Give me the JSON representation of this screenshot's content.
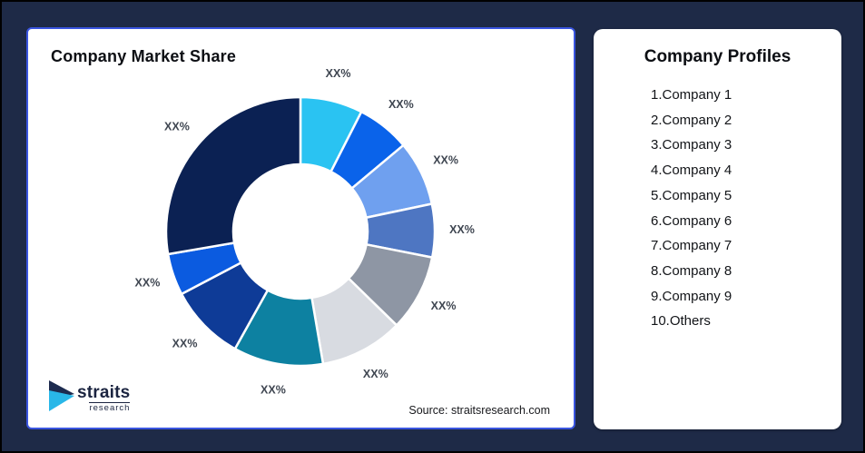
{
  "frame": {
    "background": "#1E2A47",
    "border": "#000000"
  },
  "chart_card": {
    "title": "Company Market Share",
    "source": "Source: straitsresearch.com",
    "border_color": "#3A55E0"
  },
  "chart_data": {
    "type": "pie",
    "subtype": "donut",
    "title": "Company Market Share",
    "start_angle_deg": 0,
    "direction": "clockwise",
    "label_color": "#3F4651",
    "segments": [
      {
        "label": "XX%",
        "value_pct": 7.5,
        "color": "#2AC3F2"
      },
      {
        "label": "XX%",
        "value_pct": 6.4,
        "color": "#0A63EA"
      },
      {
        "label": "XX%",
        "value_pct": 7.8,
        "color": "#6FA0EF"
      },
      {
        "label": "XX%",
        "value_pct": 6.4,
        "color": "#4E76C2"
      },
      {
        "label": "XX%",
        "value_pct": 9.2,
        "color": "#8E96A4"
      },
      {
        "label": "XX%",
        "value_pct": 10.0,
        "color": "#D8DBE1"
      },
      {
        "label": "XX%",
        "value_pct": 10.8,
        "color": "#0D81A1"
      },
      {
        "label": "XX%",
        "value_pct": 9.2,
        "color": "#0E3B97"
      },
      {
        "label": "XX%",
        "value_pct": 5.0,
        "color": "#0B5BE0"
      },
      {
        "label": "XX%",
        "value_pct": 27.7,
        "color": "#0B2153"
      }
    ]
  },
  "profiles_card": {
    "title": "Company Profiles",
    "items": [
      "1.Company 1",
      "2.Company 2",
      "3.Company 3",
      "4.Company 4",
      "5.Company 5",
      "6.Company 6",
      "7.Company 7",
      "8.Company 8",
      "9.Company 9",
      "10.Others"
    ]
  },
  "logo": {
    "brand": "straits",
    "sub_brand": "research",
    "navy": "#1D2B4F",
    "cyan": "#29B7E8"
  }
}
